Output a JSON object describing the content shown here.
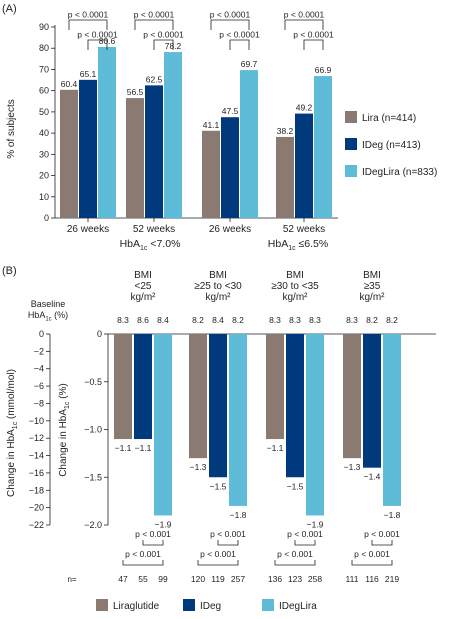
{
  "colors": {
    "lira": "#8b7a71",
    "ideg": "#003a7d",
    "ideglira": "#5fbcd8",
    "text": "#231f20",
    "axis": "#231f20"
  },
  "panel_a": {
    "label": "(A)",
    "ylabel": "% of subjects",
    "legend": [
      "Lira (n=414)",
      "IDeg (n=413)",
      "IDegLira (n=833)"
    ],
    "group_labels": [
      "HbA",
      "HbA"
    ],
    "group_sub": [
      "1c",
      "1c"
    ],
    "group_suffix": [
      " <7.0%",
      " ≤6.5%"
    ],
    "sig_label": "p < 0.0001"
  },
  "panel_b": {
    "label": "(B)",
    "baseline_label_1": "Baseline",
    "baseline_label_2": "HbA",
    "baseline_label_sub": "1c",
    "baseline_label_3": " (%)",
    "bmi_headers": [
      [
        "BMI",
        "<25",
        "kg/m²"
      ],
      [
        "BMI",
        "≥25 to <30",
        "kg/m²"
      ],
      [
        "BMI",
        "≥30 to <35",
        "kg/m²"
      ],
      [
        "BMI",
        "≥35",
        "kg/m²"
      ]
    ],
    "baseline_values": [
      [
        "8.3",
        "8.6",
        "8.4"
      ],
      [
        "8.2",
        "8.4",
        "8.2"
      ],
      [
        "8.3",
        "8.3",
        "8.3"
      ],
      [
        "8.3",
        "8.2",
        "8.2"
      ]
    ],
    "n_label": "n=",
    "n_values": [
      [
        "47",
        "55",
        "99"
      ],
      [
        "120",
        "119",
        "257"
      ],
      [
        "136",
        "123",
        "258"
      ],
      [
        "111",
        "116",
        "219"
      ]
    ],
    "left_axis_label": "Change in HbA",
    "left_axis_sub": "1c",
    "left_axis_suffix": " (mmol/mol)",
    "right_axis_label": "Change in HbA",
    "right_axis_sub": "1c",
    "right_axis_suffix": " (%)",
    "sig_label": "p < 0.001",
    "legend": [
      "Liraglutide",
      "IDeg",
      "IDegLira"
    ]
  },
  "chart_data": [
    {
      "type": "bar",
      "title": "",
      "ylabel": "% of subjects",
      "ylim": [
        0,
        90
      ],
      "yticks": [
        0,
        10,
        20,
        30,
        40,
        50,
        60,
        70,
        80,
        90
      ],
      "categories": [
        "26 weeks",
        "52 weeks",
        "26 weeks",
        "52 weeks"
      ],
      "groups": [
        "HbA1c <7.0%",
        "HbA1c ≤6.5%"
      ],
      "series": [
        {
          "name": "Lira (n=414)",
          "values": [
            60.4,
            56.5,
            41.1,
            38.2
          ]
        },
        {
          "name": "IDeg (n=413)",
          "values": [
            65.1,
            62.5,
            47.5,
            49.2
          ]
        },
        {
          "name": "IDegLira (n=833)",
          "values": [
            80.6,
            78.2,
            69.7,
            66.9
          ]
        }
      ],
      "annotations": [
        "p < 0.0001"
      ],
      "legend_position": "right"
    },
    {
      "type": "bar",
      "title": "",
      "ylabel": "Change in HbA1c (%)",
      "ylabel_secondary": "Change in HbA1c (mmol/mol)",
      "ylim": [
        -2.0,
        0
      ],
      "yticks": [
        0,
        -0.5,
        -1.0,
        -1.5,
        -2.0
      ],
      "ylim_secondary": [
        -22,
        0
      ],
      "yticks_secondary": [
        0,
        -2,
        -4,
        -6,
        -8,
        -10,
        -12,
        -14,
        -16,
        -18,
        -20,
        -22
      ],
      "categories": [
        "BMI <25 kg/m²",
        "BMI ≥25 to <30 kg/m²",
        "BMI ≥30 to <35 kg/m²",
        "BMI ≥35 kg/m²"
      ],
      "series": [
        {
          "name": "Liraglutide",
          "values": [
            -1.1,
            -1.3,
            -1.1,
            -1.3
          ]
        },
        {
          "name": "IDeg",
          "values": [
            -1.1,
            -1.5,
            -1.5,
            -1.4
          ]
        },
        {
          "name": "IDegLira",
          "values": [
            -1.9,
            -1.8,
            -1.9,
            -1.8
          ]
        }
      ],
      "annotations": [
        "p < 0.001"
      ],
      "legend_position": "bottom"
    }
  ]
}
